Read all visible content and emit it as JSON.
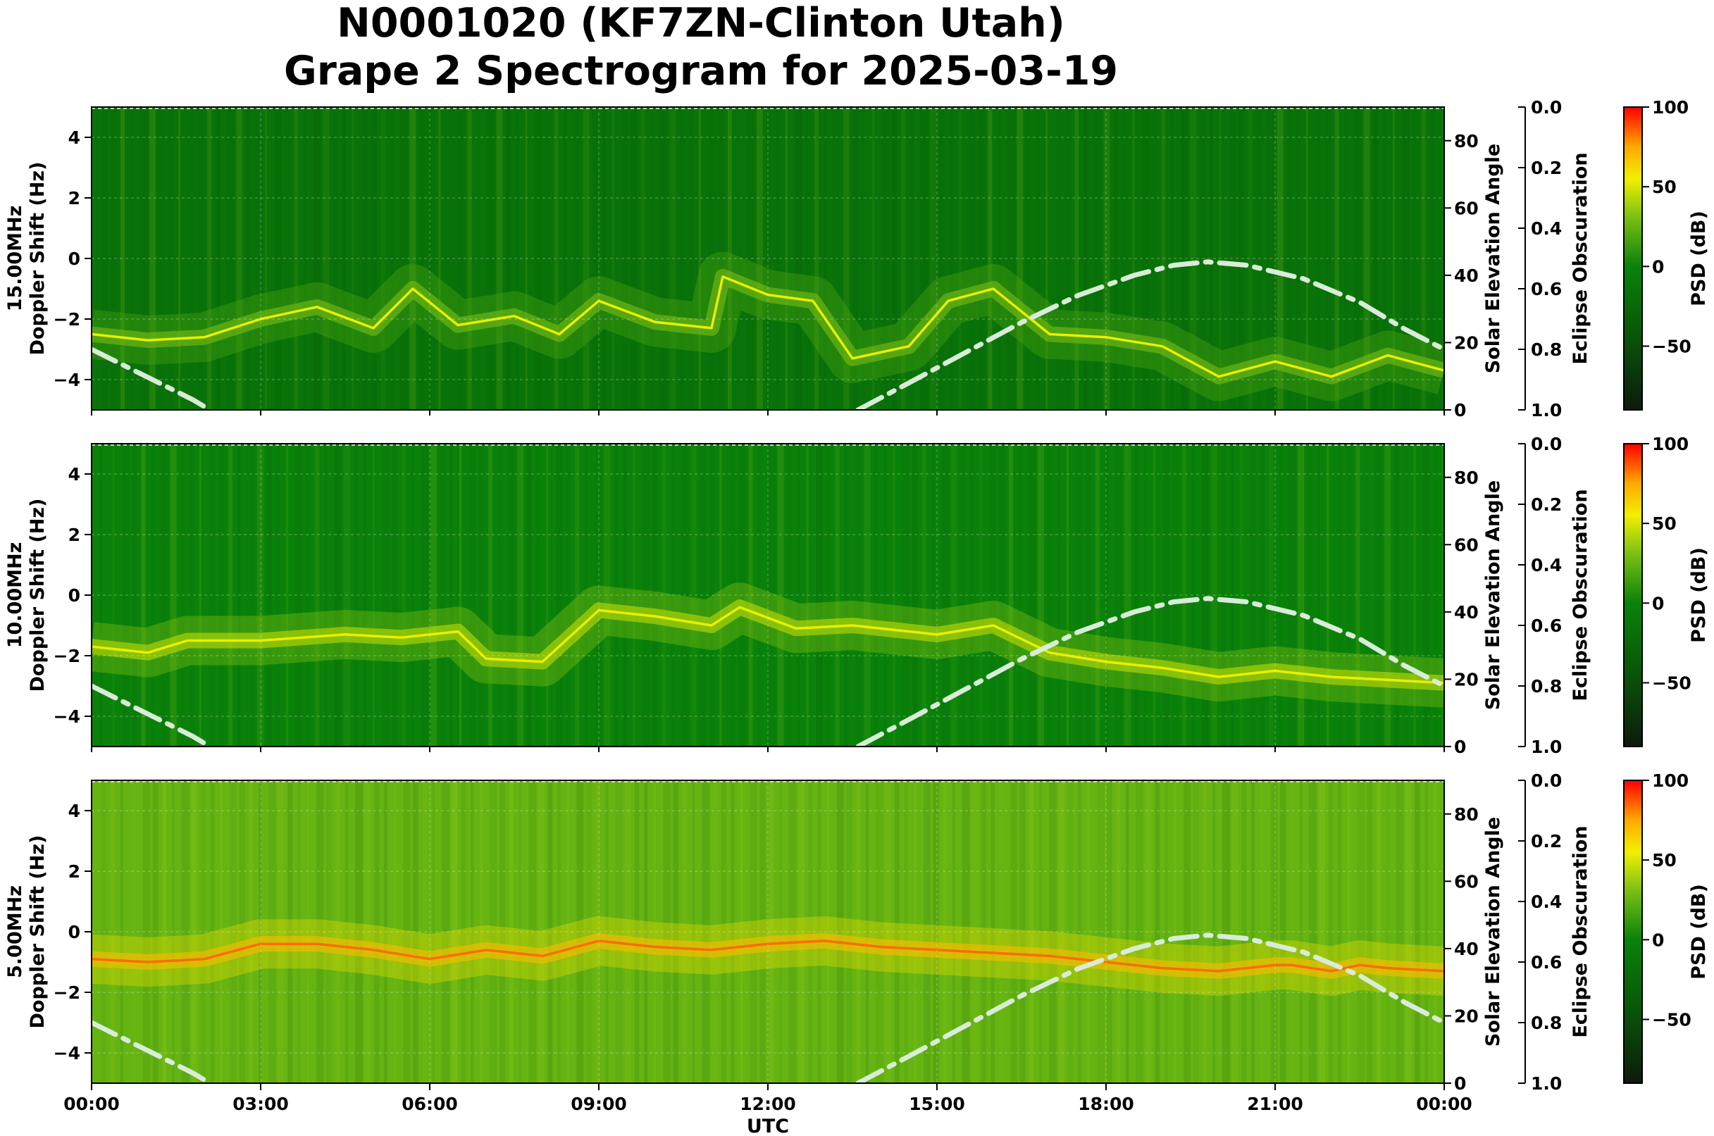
{
  "title_line1": "N0001020 (KF7ZN-Clinton Utah)",
  "title_line2": "Grape 2 Spectrogram for 2025-03-19",
  "chart_data": [
    {
      "type": "heatmap",
      "panel_label": "15.00MHz",
      "ylabel": "Doppler Shift (Hz)",
      "ylim": [
        -5,
        5
      ],
      "yticks": [
        4,
        2,
        0,
        -2,
        -4
      ],
      "xlim_hours": [
        0,
        24
      ],
      "doppler_trace_hz": [
        [
          0,
          -2.5
        ],
        [
          1,
          -2.7
        ],
        [
          2,
          -2.6
        ],
        [
          3,
          -2.0
        ],
        [
          4,
          -1.6
        ],
        [
          5,
          -2.3
        ],
        [
          5.7,
          -1.0
        ],
        [
          6.5,
          -2.2
        ],
        [
          7.5,
          -1.9
        ],
        [
          8.3,
          -2.5
        ],
        [
          9.0,
          -1.4
        ],
        [
          10,
          -2.1
        ],
        [
          11,
          -2.3
        ],
        [
          11.2,
          -0.6
        ],
        [
          12,
          -1.2
        ],
        [
          12.8,
          -1.4
        ],
        [
          13.5,
          -3.3
        ],
        [
          14.5,
          -2.9
        ],
        [
          15.2,
          -1.4
        ],
        [
          16,
          -1.0
        ],
        [
          17,
          -2.5
        ],
        [
          18,
          -2.6
        ],
        [
          19,
          -2.9
        ],
        [
          20,
          -3.9
        ],
        [
          21,
          -3.4
        ],
        [
          22,
          -3.9
        ],
        [
          23,
          -3.2
        ],
        [
          24,
          -3.7
        ]
      ],
      "background_psd_db": -15,
      "solar_elevation_axis": {
        "label": "Solar Elevation Angle",
        "ticks": [
          0,
          20,
          40,
          60,
          80
        ],
        "range": [
          0,
          90
        ]
      },
      "eclipse_axis": {
        "label": "Eclipse Obscuration",
        "ticks": [
          "0.0",
          "0.2",
          "0.4",
          "0.6",
          "0.8",
          "1.0"
        ]
      },
      "colorbar": {
        "label": "PSD (dB)",
        "ticks": [
          "100",
          "50",
          "0",
          "−50"
        ],
        "range": [
          -90,
          100
        ]
      }
    },
    {
      "type": "heatmap",
      "panel_label": "10.00MHz",
      "ylabel": "Doppler Shift (Hz)",
      "ylim": [
        -5,
        5
      ],
      "yticks": [
        4,
        2,
        0,
        -2,
        -4
      ],
      "xlim_hours": [
        0,
        24
      ],
      "doppler_trace_hz": [
        [
          0,
          -1.7
        ],
        [
          1,
          -1.9
        ],
        [
          1.7,
          -1.5
        ],
        [
          3,
          -1.5
        ],
        [
          4.5,
          -1.3
        ],
        [
          5.5,
          -1.4
        ],
        [
          6.5,
          -1.2
        ],
        [
          7,
          -2.1
        ],
        [
          8,
          -2.2
        ],
        [
          9,
          -0.5
        ],
        [
          10,
          -0.7
        ],
        [
          11,
          -1.0
        ],
        [
          11.5,
          -0.4
        ],
        [
          12.5,
          -1.1
        ],
        [
          13.5,
          -1.0
        ],
        [
          15,
          -1.3
        ],
        [
          16,
          -1.0
        ],
        [
          17,
          -1.9
        ],
        [
          18,
          -2.2
        ],
        [
          19,
          -2.4
        ],
        [
          20,
          -2.7
        ],
        [
          21,
          -2.5
        ],
        [
          22,
          -2.7
        ],
        [
          23,
          -2.8
        ],
        [
          24,
          -2.9
        ]
      ],
      "background_psd_db": 0,
      "solar_elevation_axis": {
        "label": "Solar Elevation Angle",
        "ticks": [
          0,
          20,
          40,
          60,
          80
        ],
        "range": [
          0,
          90
        ]
      },
      "eclipse_axis": {
        "label": "Eclipse Obscuration",
        "ticks": [
          "0.0",
          "0.2",
          "0.4",
          "0.6",
          "0.8",
          "1.0"
        ]
      },
      "colorbar": {
        "label": "PSD (dB)",
        "ticks": [
          "100",
          "50",
          "0",
          "−50"
        ],
        "range": [
          -90,
          100
        ]
      }
    },
    {
      "type": "heatmap",
      "panel_label": "5.00MHz",
      "ylabel": "Doppler Shift (Hz)",
      "xlabel": "UTC",
      "ylim": [
        -5,
        5
      ],
      "yticks": [
        4,
        2,
        0,
        -2,
        -4
      ],
      "xlim_hours": [
        0,
        24
      ],
      "xticks": [
        "00:00",
        "03:00",
        "06:00",
        "09:00",
        "12:00",
        "15:00",
        "18:00",
        "21:00",
        "00:00"
      ],
      "doppler_trace_hz": [
        [
          0,
          -0.9
        ],
        [
          1,
          -1.0
        ],
        [
          2,
          -0.9
        ],
        [
          3,
          -0.4
        ],
        [
          4,
          -0.4
        ],
        [
          5,
          -0.6
        ],
        [
          6,
          -0.9
        ],
        [
          7,
          -0.6
        ],
        [
          8,
          -0.8
        ],
        [
          9,
          -0.3
        ],
        [
          10,
          -0.5
        ],
        [
          11,
          -0.6
        ],
        [
          12,
          -0.4
        ],
        [
          13,
          -0.3
        ],
        [
          14,
          -0.5
        ],
        [
          15,
          -0.6
        ],
        [
          16,
          -0.7
        ],
        [
          17,
          -0.8
        ],
        [
          18,
          -1.0
        ],
        [
          19,
          -1.2
        ],
        [
          20,
          -1.3
        ],
        [
          21,
          -1.1
        ],
        [
          21.3,
          -1.1
        ],
        [
          22,
          -1.3
        ],
        [
          22.5,
          -1.1
        ],
        [
          23,
          -1.2
        ],
        [
          24,
          -1.3
        ]
      ],
      "background_psd_db": 25,
      "solar_elevation_axis": {
        "label": "Solar Elevation Angle",
        "ticks": [
          0,
          20,
          40,
          60,
          80
        ],
        "range": [
          0,
          90
        ]
      },
      "eclipse_axis": {
        "label": "Eclipse Obscuration",
        "ticks": [
          "0.0",
          "0.2",
          "0.4",
          "0.6",
          "0.8",
          "1.0"
        ]
      },
      "colorbar": {
        "label": "PSD (dB)",
        "ticks": [
          "100",
          "50",
          "0",
          "−50"
        ],
        "range": [
          -90,
          100
        ]
      }
    }
  ],
  "solar_elevation_curve": {
    "series_style": "dash-dot",
    "color": "#d8ecd8",
    "points": [
      [
        0,
        18
      ],
      [
        0.6,
        13
      ],
      [
        1.2,
        8
      ],
      [
        1.8,
        3
      ],
      [
        2.1,
        0
      ],
      [
        13.6,
        0
      ],
      [
        14.5,
        8
      ],
      [
        15.5,
        17
      ],
      [
        16.5,
        26
      ],
      [
        17.5,
        34
      ],
      [
        18.5,
        40
      ],
      [
        19.2,
        43
      ],
      [
        19.8,
        44
      ],
      [
        20.5,
        43
      ],
      [
        21.5,
        39
      ],
      [
        22.5,
        32
      ],
      [
        23.3,
        24
      ],
      [
        24,
        18
      ]
    ]
  },
  "colors": {
    "psd_low": "#0d1a0d",
    "psd_mid": "#0a7a0a",
    "psd_high": "#ffff00",
    "psd_max": "#ff0000"
  }
}
